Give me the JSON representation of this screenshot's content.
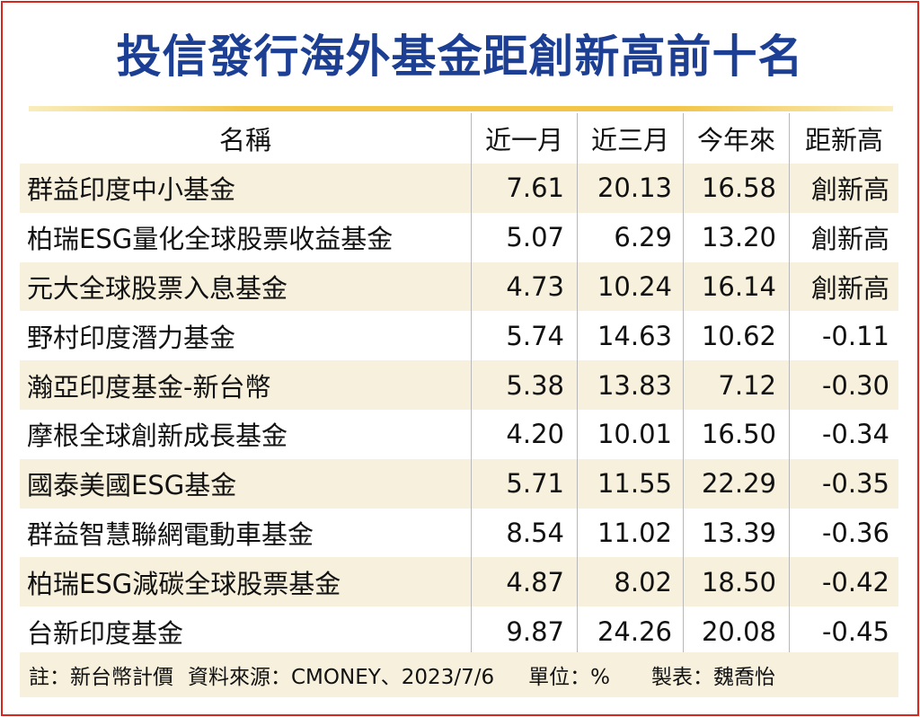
{
  "title": "投信發行海外基金距創新高前十名",
  "headers": {
    "name": "名稱",
    "one_month": "近一月",
    "three_month": "近三月",
    "ytd": "今年來",
    "from_high": "距新高"
  },
  "rows": [
    {
      "name": "群益印度中小基金",
      "one_month": "7.61",
      "three_month": "20.13",
      "ytd": "16.58",
      "from_high": "創新高"
    },
    {
      "name": "柏瑞ESG量化全球股票收益基金",
      "one_month": "5.07",
      "three_month": "6.29",
      "ytd": "13.20",
      "from_high": "創新高"
    },
    {
      "name": "元大全球股票入息基金",
      "one_month": "4.73",
      "three_month": "10.24",
      "ytd": "16.14",
      "from_high": "創新高"
    },
    {
      "name": "野村印度潛力基金",
      "one_month": "5.74",
      "three_month": "14.63",
      "ytd": "10.62",
      "from_high": "-0.11"
    },
    {
      "name": "瀚亞印度基金-新台幣",
      "one_month": "5.38",
      "three_month": "13.83",
      "ytd": "7.12",
      "from_high": "-0.30"
    },
    {
      "name": "摩根全球創新成長基金",
      "one_month": "4.20",
      "three_month": "10.01",
      "ytd": "16.50",
      "from_high": "-0.34"
    },
    {
      "name": "國泰美國ESG基金",
      "one_month": "5.71",
      "three_month": "11.55",
      "ytd": "22.29",
      "from_high": "-0.35"
    },
    {
      "name": "群益智慧聯網電動車基金",
      "one_month": "8.54",
      "three_month": "11.02",
      "ytd": "13.39",
      "from_high": "-0.36"
    },
    {
      "name": "柏瑞ESG減碳全球股票基金",
      "one_month": "4.87",
      "three_month": "8.02",
      "ytd": "18.50",
      "from_high": "-0.42"
    },
    {
      "name": "台新印度基金",
      "one_month": "9.87",
      "three_month": "24.26",
      "ytd": "20.08",
      "from_high": "-0.45"
    }
  ],
  "footer": {
    "note": "註：新台幣計價",
    "source": "資料來源：CMONEY、2023/7/6",
    "unit": "單位：%",
    "maker": "製表：魏喬怡"
  },
  "colors": {
    "title": "#1c3f94",
    "border": "#d9261c",
    "rule": "#f2c548",
    "shade": "#f6f0dc"
  }
}
